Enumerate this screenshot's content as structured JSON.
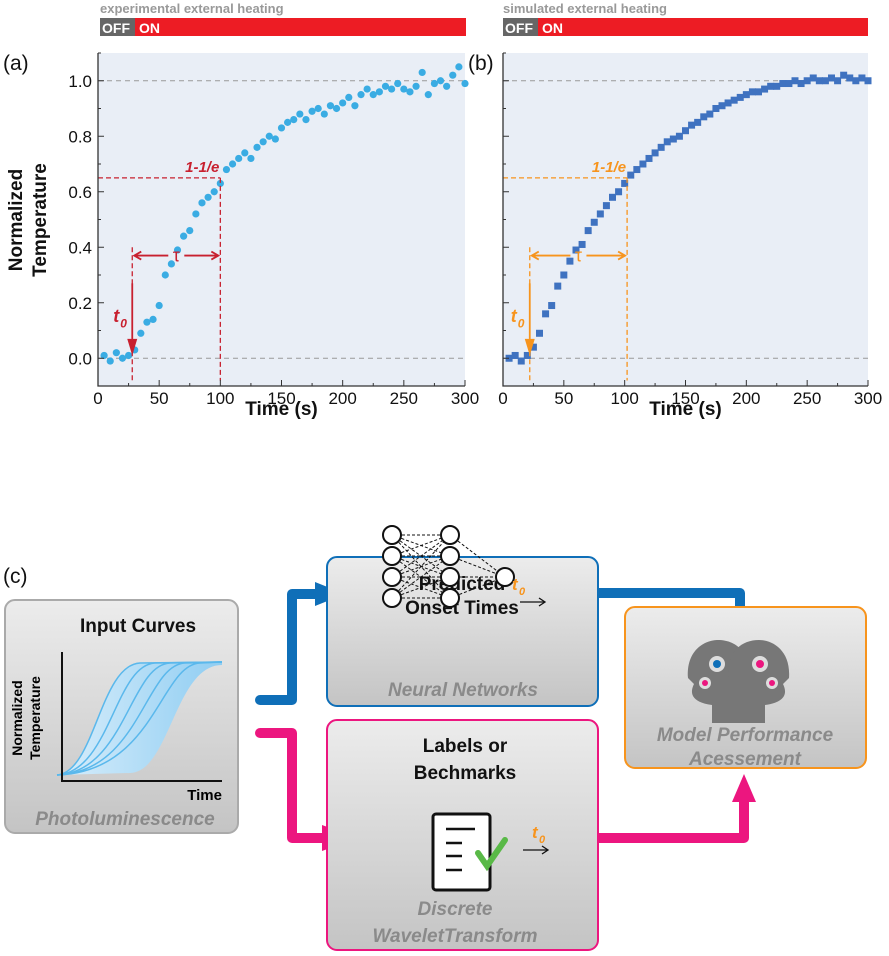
{
  "panel_labels": {
    "a": "(a)",
    "b": "(b)",
    "c": "(c)"
  },
  "heating_bars": [
    {
      "title": "experimental external heating",
      "off": "OFF",
      "on": "ON"
    },
    {
      "title": "simulated external heating",
      "off": "OFF",
      "on": "ON"
    }
  ],
  "colors": {
    "on": "#ed1c24",
    "off": "#666666",
    "plot_bg": "#e9eef6",
    "series_a": "#3aace3",
    "series_b": "#3f72c0",
    "annot_a": "#c8202f",
    "annot_b": "#f7941d",
    "blue_arrow": "#0f6fb8",
    "pink_arrow": "#ec167f",
    "perf_border": "#f7941d"
  },
  "chart_data": [
    {
      "type": "scatter",
      "xlabel": "Time (s)",
      "ylabel": "Normalized Temperature",
      "xlim": [
        0,
        300
      ],
      "ylim": [
        -0.1,
        1.1
      ],
      "xticks": [
        "0",
        "50",
        "100",
        "150",
        "200",
        "250",
        "300"
      ],
      "yticks": [
        "0.0",
        "0.2",
        "0.4",
        "0.6",
        "0.8",
        "1.0"
      ],
      "marker": "circle",
      "annotations": {
        "t0_label": "t",
        "t0_sub": "0",
        "tau": "τ",
        "e_label": "1-1/e",
        "t0": 28,
        "tau_end": 100,
        "e_level": 0.65,
        "ref_lines": [
          0,
          1
        ]
      },
      "x": [
        5,
        10,
        15,
        20,
        25,
        30,
        35,
        40,
        45,
        50,
        55,
        60,
        65,
        70,
        75,
        80,
        85,
        90,
        95,
        100,
        105,
        110,
        115,
        120,
        125,
        130,
        135,
        140,
        145,
        150,
        155,
        160,
        165,
        170,
        175,
        180,
        185,
        190,
        195,
        200,
        205,
        210,
        215,
        220,
        225,
        230,
        235,
        240,
        245,
        250,
        255,
        260,
        265,
        270,
        275,
        280,
        285,
        290,
        295,
        300
      ],
      "y": [
        0.01,
        -0.01,
        0.02,
        0.0,
        0.01,
        0.03,
        0.09,
        0.13,
        0.14,
        0.19,
        0.3,
        0.34,
        0.39,
        0.44,
        0.46,
        0.52,
        0.56,
        0.58,
        0.6,
        0.63,
        0.68,
        0.7,
        0.72,
        0.74,
        0.72,
        0.76,
        0.78,
        0.8,
        0.79,
        0.83,
        0.85,
        0.86,
        0.88,
        0.86,
        0.89,
        0.9,
        0.88,
        0.91,
        0.9,
        0.92,
        0.94,
        0.91,
        0.95,
        0.97,
        0.95,
        0.96,
        0.98,
        0.97,
        0.99,
        0.97,
        0.96,
        0.98,
        1.03,
        0.95,
        0.99,
        1.0,
        0.98,
        1.02,
        1.05,
        0.99
      ]
    },
    {
      "type": "scatter",
      "xlabel": "Time (s)",
      "ylabel": "",
      "xlim": [
        0,
        300
      ],
      "ylim": [
        -0.1,
        1.1
      ],
      "xticks": [
        "0",
        "50",
        "100",
        "150",
        "200",
        "250",
        "300"
      ],
      "yticks": [],
      "marker": "square",
      "annotations": {
        "t0_label": "t",
        "t0_sub": "0",
        "tau": "τ",
        "e_label": "1-1/e",
        "t0": 22,
        "tau_end": 102,
        "e_level": 0.65,
        "ref_lines": [
          0,
          1
        ]
      },
      "x": [
        5,
        10,
        15,
        20,
        25,
        30,
        35,
        40,
        45,
        50,
        55,
        60,
        65,
        70,
        75,
        80,
        85,
        90,
        95,
        100,
        105,
        110,
        115,
        120,
        125,
        130,
        135,
        140,
        145,
        150,
        155,
        160,
        165,
        170,
        175,
        180,
        185,
        190,
        195,
        200,
        205,
        210,
        215,
        220,
        225,
        230,
        235,
        240,
        245,
        250,
        255,
        260,
        265,
        270,
        275,
        280,
        285,
        290,
        295,
        300
      ],
      "y": [
        0.0,
        0.01,
        -0.01,
        0.01,
        0.04,
        0.09,
        0.16,
        0.19,
        0.26,
        0.3,
        0.35,
        0.39,
        0.41,
        0.46,
        0.49,
        0.52,
        0.55,
        0.58,
        0.6,
        0.63,
        0.66,
        0.68,
        0.7,
        0.72,
        0.74,
        0.76,
        0.78,
        0.79,
        0.8,
        0.82,
        0.84,
        0.85,
        0.87,
        0.88,
        0.9,
        0.91,
        0.92,
        0.93,
        0.94,
        0.95,
        0.96,
        0.96,
        0.97,
        0.98,
        0.98,
        0.99,
        0.99,
        1.0,
        0.99,
        1.0,
        1.01,
        1.0,
        1.0,
        1.01,
        1.0,
        1.02,
        1.01,
        1.0,
        1.01,
        1.0
      ]
    }
  ],
  "diagram": {
    "input": {
      "title": "Input Curves",
      "ylabel1": "Normalized",
      "ylabel2": "Temperature",
      "xlabel": "Time",
      "caption": "Photoluminescence"
    },
    "nn": {
      "title1": "Predicted",
      "title2": "Onset Times",
      "output": "t",
      "output_sub": "0",
      "caption": "Neural Networks"
    },
    "labels": {
      "title1": "Labels or",
      "title2": "Bechmarks",
      "output": "t",
      "output_sub": "0",
      "caption1": "Discrete",
      "caption2": "WaveletTransform"
    },
    "perf": {
      "caption1": "Model Performance",
      "caption2": "Acessement"
    }
  }
}
